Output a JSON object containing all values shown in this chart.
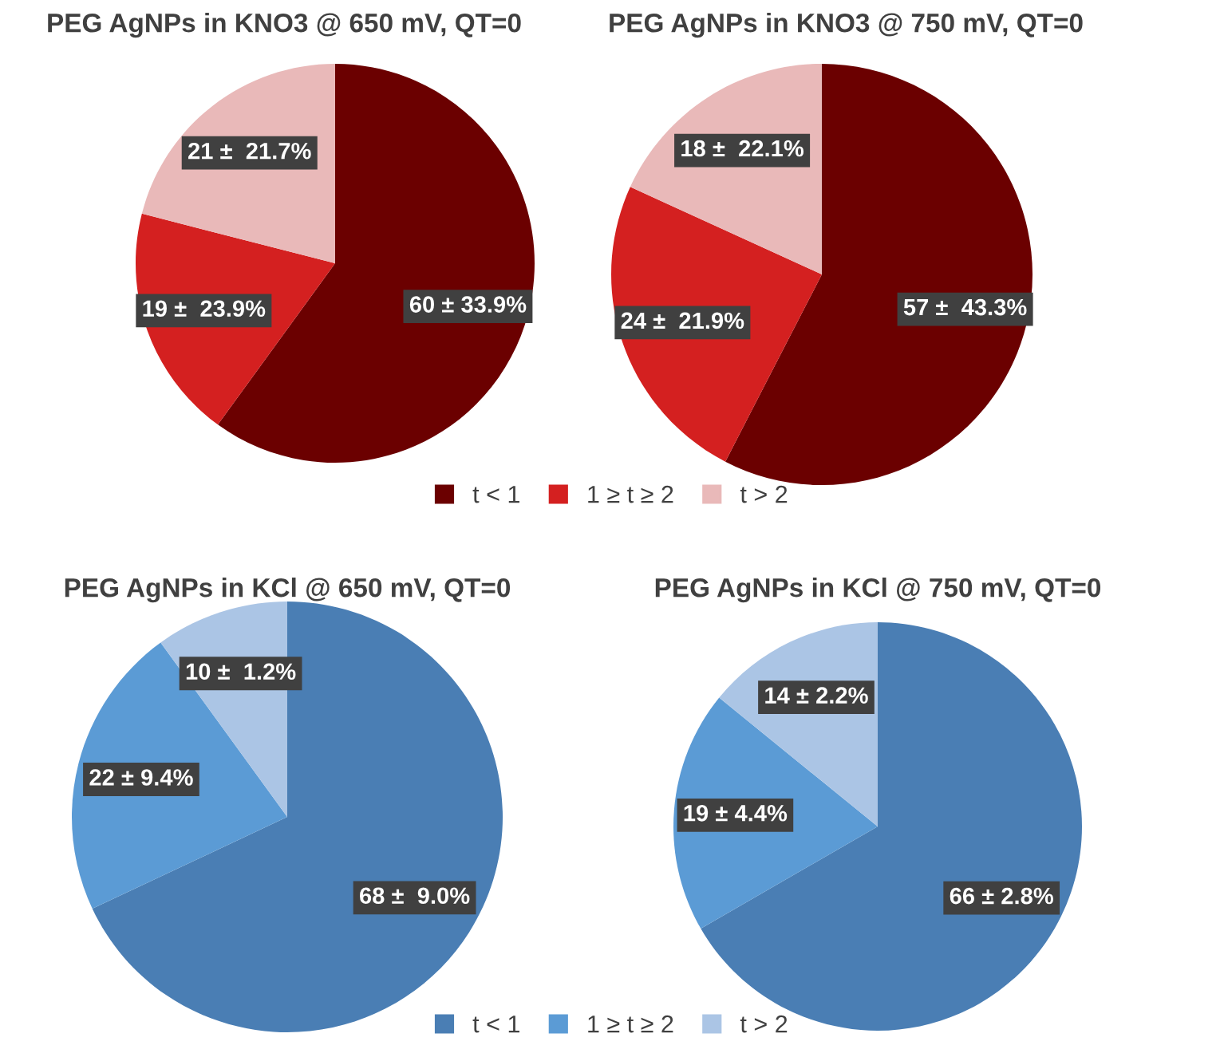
{
  "chart_data": [
    {
      "type": "pie",
      "title": "PEG AgNPs in KNO3 @ 650 mV, QT=0",
      "categories": [
        "t < 1",
        "1 ≥ t ≥ 2",
        "t > 2"
      ],
      "values": [
        60,
        19,
        21
      ],
      "colors": [
        "#6b0000",
        "#d42020",
        "#e9b9b9"
      ],
      "value_labels": [
        "60 ± 33.9%",
        "19 ±  23.9%",
        "21 ±  21.7%"
      ],
      "legend": "bottom"
    },
    {
      "type": "pie",
      "title": "PEG AgNPs in KNO3 @ 750 mV, QT=0",
      "categories": [
        null,
        null,
        null
      ],
      "values": [
        57,
        24,
        18
      ],
      "colors": [
        "#6b0000",
        "#d42020",
        "#e9b9b9"
      ],
      "value_labels": [
        "57 ±  43.3%",
        "24 ±  21.9%",
        "18 ±  22.1%"
      ]
    },
    {
      "type": "pie",
      "title": "PEG AgNPs in KCl @ 650 mV, QT=0",
      "categories": [
        "t < 1",
        "1 ≥ t ≥ 2",
        "t > 2"
      ],
      "values": [
        68,
        22,
        10
      ],
      "colors": [
        "#4a7eb4",
        "#5b9bd5",
        "#abc5e5"
      ],
      "value_labels": [
        "68 ±  9.0%",
        "22 ± 9.4%",
        "10 ±  1.2%"
      ],
      "legend": "bottom"
    },
    {
      "type": "pie",
      "title": "PEG AgNPs in KCl @ 750 mV, QT=0",
      "categories": [
        null,
        null,
        null
      ],
      "values": [
        66,
        19,
        14
      ],
      "colors": [
        "#4a7eb4",
        "#5b9bd5",
        "#abc5e5"
      ],
      "value_labels": [
        "66 ± 2.8%",
        "19 ± 4.4%",
        "14 ± 2.2%"
      ]
    }
  ]
}
